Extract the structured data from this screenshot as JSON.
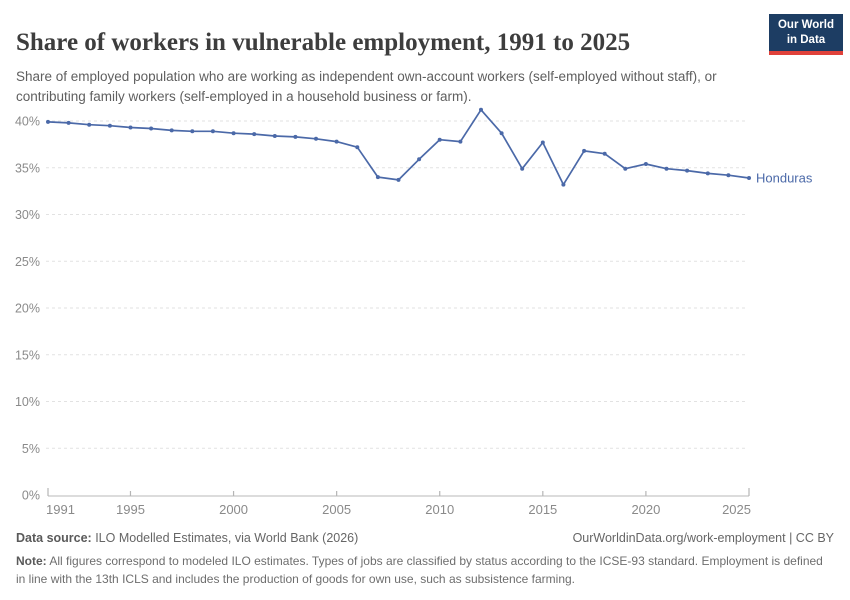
{
  "header": {
    "title": "Share of workers in vulnerable employment, 1991 to 2025",
    "subtitle": "Share of employed population who are working as independent own-account workers (self-employed without staff), or contributing family workers (self-employed in a household business or farm).",
    "logo": {
      "line1": "Our World",
      "line2": "in Data"
    }
  },
  "chart_data": {
    "type": "line",
    "title": "Share of workers in vulnerable employment, 1991 to 2025",
    "xlabel": "",
    "ylabel": "",
    "x_range": [
      1991,
      2025
    ],
    "ylim": [
      0,
      42
    ],
    "yticks": [
      0,
      5,
      10,
      15,
      20,
      25,
      30,
      35,
      40
    ],
    "ytick_suffix": "%",
    "xticks": [
      1991,
      1995,
      2000,
      2005,
      2010,
      2015,
      2020,
      2025
    ],
    "grid": "horizontal-dashed",
    "legend_position": "end-of-line-label",
    "series": [
      {
        "name": "Honduras",
        "x": [
          1991,
          1992,
          1993,
          1994,
          1995,
          1996,
          1997,
          1998,
          1999,
          2000,
          2001,
          2002,
          2003,
          2004,
          2005,
          2006,
          2007,
          2008,
          2009,
          2010,
          2011,
          2012,
          2013,
          2014,
          2015,
          2016,
          2017,
          2018,
          2019,
          2020,
          2021,
          2022,
          2023,
          2024,
          2025
        ],
        "values": [
          39.9,
          39.8,
          39.6,
          39.5,
          39.3,
          39.2,
          39.0,
          38.9,
          38.9,
          38.7,
          38.6,
          38.4,
          38.3,
          38.1,
          37.8,
          37.2,
          34.0,
          33.7,
          35.9,
          38.0,
          37.8,
          41.2,
          38.7,
          34.9,
          37.7,
          33.2,
          36.8,
          36.5,
          34.9,
          35.4,
          34.9,
          34.7,
          34.4,
          34.2,
          33.9
        ]
      }
    ]
  },
  "footer": {
    "datasource_label": "Data source:",
    "datasource_text": " ILO Modelled Estimates, via World Bank (2026)",
    "link_text": "OurWorldinData.org/work-employment | CC BY",
    "note_label": "Note:",
    "note_text": " All figures correspond to modeled ILO estimates. Types of jobs are classified by status according to the ICSE-93 standard. Employment is defined in line with the 13th ICLS and includes the production of goods for own use, such as subsistence farming."
  },
  "colors": {
    "line": "#4b69a8",
    "grid": "#e2e2e2",
    "axis": "#c6c6c6",
    "tick": "#b5b5b5",
    "logo_bg": "#1d3d63",
    "logo_accent": "#e0413a"
  }
}
